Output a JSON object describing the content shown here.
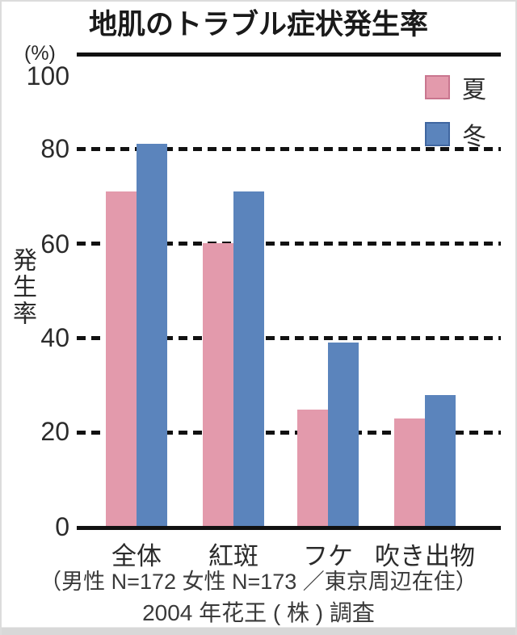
{
  "page": {
    "title": "地肌のトラブル症状発生率"
  },
  "chart_data": {
    "type": "bar",
    "title": "地肌のトラブル症状発生率",
    "ylabel": "発生率",
    "ylabel_unit": "(%)",
    "ylim": [
      0,
      100
    ],
    "yticks": [
      100,
      80,
      60,
      40,
      20,
      0
    ],
    "grid": "horizontal; solid line at 0 and 100, dashed at 20/40/60/80",
    "legend_position": "top-right",
    "categories": [
      "全体",
      "紅斑",
      "フケ",
      "吹き出物"
    ],
    "series": [
      {
        "name": "夏",
        "color": "#e39aac",
        "border_color": "#c9768f",
        "values": [
          71,
          60,
          25,
          23
        ]
      },
      {
        "name": "冬",
        "color": "#5b84bc",
        "border_color": "#3f66a0",
        "values": [
          81,
          71,
          39,
          28
        ]
      }
    ]
  },
  "footer": {
    "line1": "（男性 N=172 女性 N=173 ／東京周辺在住）",
    "line2": "2004 年花王 ( 株 ) 調査"
  }
}
